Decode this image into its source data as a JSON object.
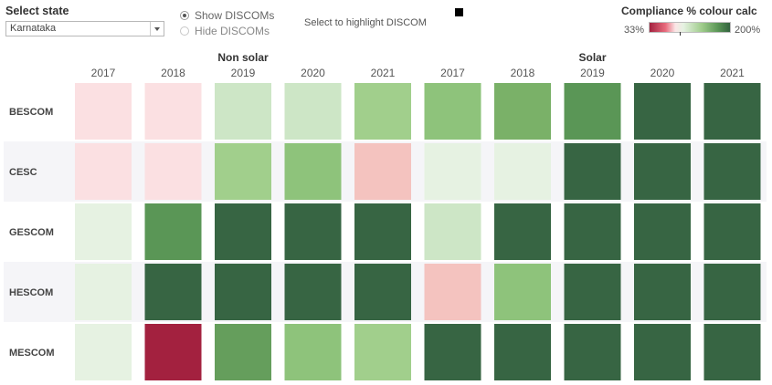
{
  "controls": {
    "select_state_label": "Select state",
    "state_value": "Karnataka",
    "radio_show": "Show DISCOMs",
    "radio_hide": "Hide DISCOMs",
    "highlight_label": "Select to highlight DISCOM"
  },
  "legend": {
    "title": "Compliance  % colour calc",
    "min_label": "33%",
    "max_label": "200%"
  },
  "colors": {
    "row_band": "#f5f5f8",
    "palette": {
      "pale_pink": "#fbe0e2",
      "pink": "#f4c3bf",
      "crimson": "#a3213f",
      "very_light_green": "#e6f2e2",
      "light_green": "#cde6c6",
      "green": "#a1cf8c",
      "medium_green": "#8ec37b",
      "mid_green": "#7ab168",
      "strong_green": "#5a9656",
      "darker_green": "#659e5c",
      "dark_green": "#376543"
    }
  },
  "chart_data": {
    "type": "heatmap",
    "groups": [
      {
        "name": "Non solar",
        "years": [
          "2017",
          "2018",
          "2019",
          "2020",
          "2021"
        ]
      },
      {
        "name": "Solar",
        "years": [
          "2017",
          "2018",
          "2019",
          "2020",
          "2021"
        ]
      }
    ],
    "rows": [
      "BESCOM",
      "CESC",
      "GESCOM",
      "HESCOM",
      "MESCOM"
    ],
    "cells": [
      [
        "pale_pink",
        "pale_pink",
        "light_green",
        "light_green",
        "green",
        "medium_green",
        "mid_green",
        "strong_green",
        "dark_green",
        "dark_green"
      ],
      [
        "pale_pink",
        "pale_pink",
        "green",
        "medium_green",
        "pink",
        "very_light_green",
        "very_light_green",
        "dark_green",
        "dark_green",
        "dark_green"
      ],
      [
        "very_light_green",
        "strong_green",
        "dark_green",
        "dark_green",
        "dark_green",
        "light_green",
        "dark_green",
        "dark_green",
        "dark_green",
        "dark_green"
      ],
      [
        "very_light_green",
        "dark_green",
        "dark_green",
        "dark_green",
        "dark_green",
        "pink",
        "medium_green",
        "dark_green",
        "dark_green",
        "dark_green"
      ],
      [
        "very_light_green",
        "crimson",
        "darker_green",
        "medium_green",
        "green",
        "dark_green",
        "dark_green",
        "dark_green",
        "dark_green",
        "dark_green"
      ]
    ],
    "legend": {
      "min": "33%",
      "max": "200%"
    }
  }
}
